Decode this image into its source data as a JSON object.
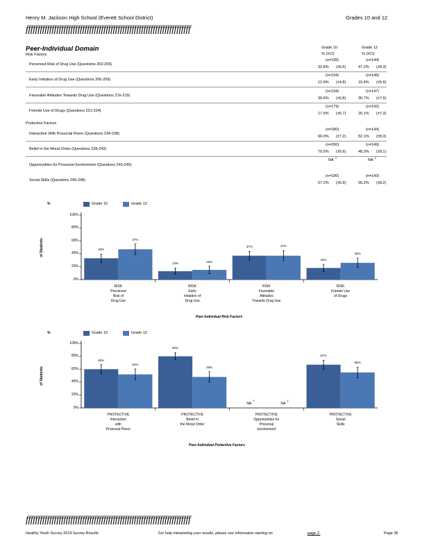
{
  "header": {
    "school": "Henry M. Jackson High School (Everett School District)",
    "grades": "Grades 10 and 12",
    "rule_text": "ffffffffffffffffffffffffffffffffffffffffffffffffffffffffffffffffffffff"
  },
  "domain": {
    "title": "Peer-Individual Domain",
    "col_grade10": "Grade 10",
    "col_grade12": "Grade 12",
    "col_ci": "% (±CI)",
    "risk_heading": "Risk Factors",
    "protective_heading": "Protective Factors",
    "rows": [
      {
        "label": "Perceived Risk of Drug Use (Questions 202-205)",
        "n10": "(n=195)",
        "p10": "32.8%",
        "c10": "(±6.6)",
        "n12": "(n=144)",
        "p12": "47.2%",
        "c12": "(±8.3)"
      },
      {
        "label": "Early Initiation of Drug Use (Questions 206-209)",
        "n10": "(n=194)",
        "p10": "12.9%",
        "c10": "(±4.8)",
        "n12": "(n=149)",
        "p12": "15.4%",
        "c12": "(±5.9)"
      },
      {
        "label": "Favorable Attitudes Towards Drug Use (Questions 216-219)",
        "n10": "(n=194)",
        "p10": "36.6%",
        "c10": "(±6.8)",
        "n12": "(n=147)",
        "p12": "36.7%",
        "c12": "(±7.9)"
      },
      {
        "label": "Friends Use of Drugs (Questions 221-224)",
        "n10": "(n=179)",
        "p10": "17.9%",
        "c10": "(±5.7)",
        "n12": "(n=142)",
        "p12": "26.1%",
        "c12": "(±7.3)"
      },
      {
        "label": "Interaction With Prosocial Peers (Questions 234-238)",
        "n10": "(n=180)",
        "p10": "60.0%",
        "c10": "(±7.2)",
        "n12": "(n=144)",
        "p12": "52.1%",
        "c12": "(±8.3)"
      },
      {
        "label": "Belief in the Moral Order (Questions 239-242)",
        "n10": "(n=200)",
        "p10": "79.5%",
        "c10": "(±5.6)",
        "n12": "(n=149)",
        "p12": "48.3%",
        "c12": "(±8.1)"
      },
      {
        "label": "Opportunities for Prosocial Involvement (Questions 243-245)",
        "n10": "",
        "p10": "NA",
        "c10": "c",
        "n12": "",
        "p12": "NA",
        "c12": "c"
      },
      {
        "label": "Social Skills (Questions 246-248)",
        "n10": "(n=180)",
        "p10": "67.2%",
        "c10": "(±6.9)",
        "n12": "(n=143)",
        "p12": "55.2%",
        "c12": "(±8.2)"
      }
    ]
  },
  "chart_data": [
    {
      "type": "bar",
      "title": "",
      "xlabel": "Peer-Individual Risk Factors",
      "ylabel_top": "%",
      "ylabel": "of Students",
      "ylim": [
        0,
        100
      ],
      "yticks": [
        "0%",
        "20%",
        "40%",
        "60%",
        "80%",
        "100%"
      ],
      "categories": [
        "RISK\nPerceived\nRisk of\nDrug Use",
        "RISK\nEarly\nInitiation of\nDrug Use",
        "RISK\nFavorable\nAttitudes\nTowards Drug Use",
        "RISK\nFriends Use\nof Drugs"
      ],
      "series": [
        {
          "name": "Grade 10",
          "values": [
            33,
            13,
            37,
            18
          ],
          "ci": [
            6.6,
            4.8,
            6.8,
            5.7
          ],
          "labels": [
            "33%",
            "13%",
            "37%",
            "18%"
          ]
        },
        {
          "name": "Grade 12",
          "values": [
            47,
            15,
            37,
            26
          ],
          "ci": [
            8.3,
            5.9,
            7.9,
            7.3
          ],
          "labels": [
            "47%",
            "15%",
            "37%",
            "26%"
          ]
        }
      ],
      "colors": [
        "#3a5f96",
        "#4a78b5"
      ]
    },
    {
      "type": "bar",
      "title": "",
      "xlabel": "Peer-Individual Protective Factors",
      "ylabel_top": "%",
      "ylabel": "of Students",
      "ylim": [
        0,
        100
      ],
      "yticks": [
        "0%",
        "20%",
        "40%",
        "60%",
        "80%",
        "100%"
      ],
      "categories": [
        "PROTECTIVE\nInteraction\nwith\nProsocial Peers",
        "PROTECTIVE\nBelief in\nthe Moral Order",
        "PROTECTIVE\nOpportunities for\nProsocial\nInvolvement",
        "PROTECTIVE\nSocial\nSkills"
      ],
      "series": [
        {
          "name": "Grade 10",
          "values": [
            60,
            80,
            null,
            67
          ],
          "ci": [
            7.2,
            5.6,
            null,
            6.9
          ],
          "labels": [
            "60%",
            "80%",
            "NA",
            "67%"
          ]
        },
        {
          "name": "Grade 12",
          "values": [
            52,
            48,
            null,
            55
          ],
          "ci": [
            8.3,
            8.1,
            null,
            8.2
          ],
          "labels": [
            "52%",
            "48%",
            "NA",
            "55%"
          ]
        }
      ],
      "na_marker": "c",
      "colors": [
        "#3a5f96",
        "#4a78b5"
      ]
    }
  ],
  "footer": {
    "left": "Healthy Youth Survey 2014 Survey Results",
    "middle": "For help interpreting your results, please see information starting on",
    "link": "page 2.",
    "right": "Page 36"
  }
}
